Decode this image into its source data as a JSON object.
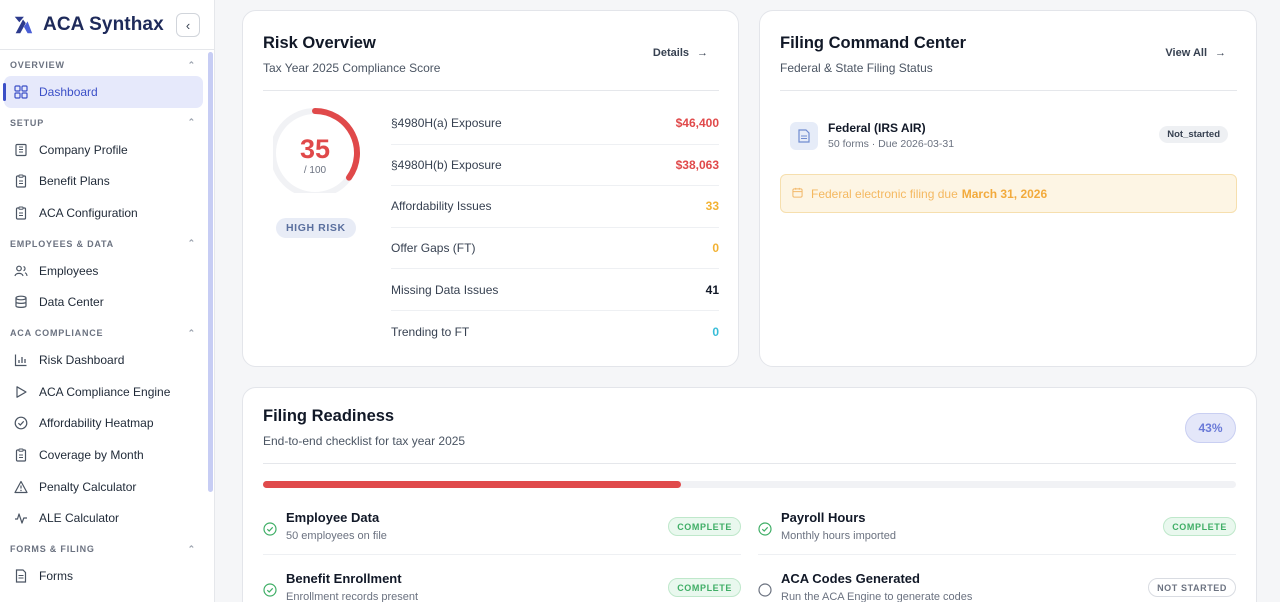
{
  "app": {
    "name": "ACA Synthax"
  },
  "sidebar": {
    "sections": [
      {
        "title": "OVERVIEW",
        "items": [
          {
            "label": "Dashboard",
            "icon": "grid-icon",
            "active": true
          }
        ]
      },
      {
        "title": "SETUP",
        "items": [
          {
            "label": "Company Profile",
            "icon": "building-icon"
          },
          {
            "label": "Benefit Plans",
            "icon": "clipboard-icon"
          },
          {
            "label": "ACA Configuration",
            "icon": "clipboard-icon"
          }
        ]
      },
      {
        "title": "EMPLOYEES & DATA",
        "items": [
          {
            "label": "Employees",
            "icon": "users-icon"
          },
          {
            "label": "Data Center",
            "icon": "database-icon"
          }
        ]
      },
      {
        "title": "ACA COMPLIANCE",
        "items": [
          {
            "label": "Risk Dashboard",
            "icon": "bar-chart-icon"
          },
          {
            "label": "ACA Compliance Engine",
            "icon": "play-icon"
          },
          {
            "label": "Affordability Heatmap",
            "icon": "check-circle-icon"
          },
          {
            "label": "Coverage by Month",
            "icon": "clipboard-icon"
          },
          {
            "label": "Penalty Calculator",
            "icon": "warning-icon"
          },
          {
            "label": "ALE Calculator",
            "icon": "activity-icon"
          }
        ]
      },
      {
        "title": "FORMS & FILING",
        "items": [
          {
            "label": "Forms",
            "icon": "file-icon"
          }
        ]
      }
    ]
  },
  "risk": {
    "title": "Risk Overview",
    "subtitle": "Tax Year 2025 Compliance Score",
    "details_label": "Details",
    "score": "35",
    "score_max": "/ 100",
    "score_fraction": 0.35,
    "level": "HIGH RISK",
    "metrics": [
      {
        "label": "§4980H(a) Exposure",
        "value": "$46,400",
        "color": "#e0494a"
      },
      {
        "label": "§4980H(b) Exposure",
        "value": "$38,063",
        "color": "#e0494a"
      },
      {
        "label": "Affordability Issues",
        "value": "33",
        "color": "#f2b233"
      },
      {
        "label": "Offer Gaps (FT)",
        "value": "0",
        "color": "#f2b233"
      },
      {
        "label": "Missing Data Issues",
        "value": "41",
        "color": "#111827"
      },
      {
        "label": "Trending to FT",
        "value": "0",
        "color": "#38bdd8"
      }
    ]
  },
  "filing": {
    "title": "Filing Command Center",
    "subtitle": "Federal & State Filing Status",
    "view_all_label": "View All",
    "federal": {
      "title": "Federal (IRS AIR)",
      "meta": "50 forms · Due 2026-03-31",
      "status": "Not_started"
    },
    "alert": {
      "text": "Federal electronic filing due",
      "date": "March 31, 2026"
    }
  },
  "readiness": {
    "title": "Filing Readiness",
    "subtitle": "End-to-end checklist for tax year 2025",
    "percent_label": "43%",
    "progress": 0.43,
    "items": [
      {
        "title": "Employee Data",
        "sub": "50 employees on file",
        "status": "COMPLETE",
        "done": true
      },
      {
        "title": "Payroll Hours",
        "sub": "Monthly hours imported",
        "status": "COMPLETE",
        "done": true
      },
      {
        "title": "Benefit Enrollment",
        "sub": "Enrollment records present",
        "status": "COMPLETE",
        "done": true
      },
      {
        "title": "ACA Codes Generated",
        "sub": "Run the ACA Engine to generate codes",
        "status": "NOT STARTED",
        "done": false
      }
    ]
  },
  "colors": {
    "accent": "#3b4fc7",
    "danger": "#e0494a",
    "success": "#3fae66",
    "warning": "#f2b233"
  }
}
